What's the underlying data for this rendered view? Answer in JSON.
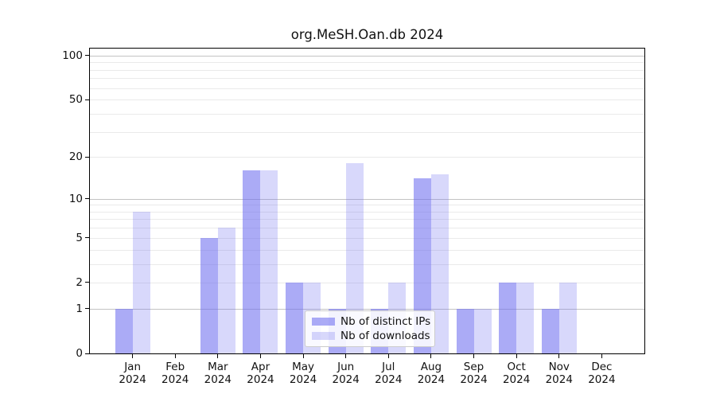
{
  "title": "org.MeSH.Oan.db 2024",
  "colors": {
    "bar_distinct_ips": "rgba(110,110,240,0.58)",
    "bar_downloads": "rgba(110,110,240,0.27)",
    "major_gridline": "#c3c3c3",
    "minor_gridline": "#eaeaea",
    "axis": "#000000",
    "text": "#111111",
    "legend_border": "#cccccc",
    "legend_background": "rgba(255,255,255,0.85)"
  },
  "chart_data": {
    "type": "bar",
    "title": "org.MeSH.Oan.db 2024",
    "categories": [
      "Jan 2024",
      "Feb 2024",
      "Mar 2024",
      "Apr 2024",
      "May 2024",
      "Jun 2024",
      "Jul 2024",
      "Aug 2024",
      "Sep 2024",
      "Oct 2024",
      "Nov 2024",
      "Dec 2024"
    ],
    "series": [
      {
        "name": "Nb of distinct IPs",
        "color": "rgba(110,110,240,0.58)",
        "values": [
          1,
          0,
          5,
          16,
          2,
          1,
          1,
          14,
          1,
          2,
          1,
          0
        ]
      },
      {
        "name": "Nb of downloads",
        "color": "rgba(110,110,240,0.27)",
        "values": [
          8,
          0,
          6,
          16,
          2,
          18,
          2,
          15,
          1,
          2,
          2,
          0
        ]
      }
    ],
    "x_axis": {
      "tick_label_year": "2024"
    },
    "y_axis": {
      "scale": "log10(v+1)",
      "axis_max": 111.7,
      "ticks": [
        0,
        1,
        2,
        5,
        10,
        20,
        50,
        100
      ],
      "major_gridlines": [
        1,
        10,
        100
      ],
      "minor_gridlines": [
        2,
        3,
        4,
        5,
        6,
        7,
        8,
        9,
        20,
        30,
        40,
        50,
        60,
        70,
        80,
        90
      ]
    },
    "legend_position": "inside-lower-center",
    "grid": true
  }
}
